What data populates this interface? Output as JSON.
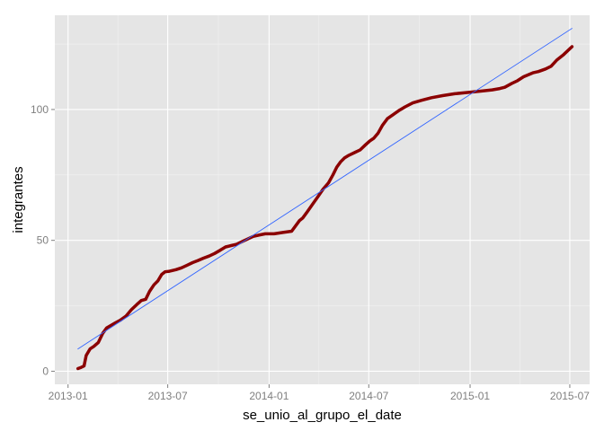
{
  "chart_data": {
    "type": "line",
    "title": "",
    "xlabel": "se_unio_al_grupo_el_date",
    "ylabel": "integrantes",
    "x_is_date": true,
    "xlim": [
      "2012-12-08",
      "2015-08-06"
    ],
    "ylim": [
      -5,
      136
    ],
    "x_ticks": [
      "2013-01",
      "2013-07",
      "2014-01",
      "2014-07",
      "2015-01",
      "2015-07"
    ],
    "y_ticks": [
      0,
      50,
      100
    ],
    "grid": true,
    "legend": "none",
    "colors": {
      "panel": "#e5e5e5",
      "grid_major": "#ffffff",
      "grid_minor": "#f2f2f2",
      "series": "#8b0000",
      "fit": "#3366ff"
    },
    "series": [
      {
        "role": "data",
        "x": [
          "2013-01-19",
          "2013-01-25",
          "2013-01-30",
          "2013-02-03",
          "2013-02-10",
          "2013-02-17",
          "2013-02-25",
          "2013-03-05",
          "2013-03-12",
          "2013-03-20",
          "2013-03-28",
          "2013-04-06",
          "2013-04-16",
          "2013-04-26",
          "2013-05-06",
          "2013-05-14",
          "2013-05-22",
          "2013-05-29",
          "2013-06-06",
          "2013-06-13",
          "2013-06-20",
          "2013-06-26",
          "2013-07-04",
          "2013-07-16",
          "2013-07-26",
          "2013-08-05",
          "2013-08-15",
          "2013-08-25",
          "2013-09-04",
          "2013-09-14",
          "2013-09-24",
          "2013-10-04",
          "2013-10-14",
          "2013-10-24",
          "2013-11-03",
          "2013-11-13",
          "2013-11-23",
          "2013-12-03",
          "2013-12-13",
          "2013-12-25",
          "2014-01-10",
          "2014-01-26",
          "2014-02-11",
          "2014-02-25",
          "2014-03-03",
          "2014-03-10",
          "2014-03-20",
          "2014-03-30",
          "2014-04-09",
          "2014-04-19",
          "2014-04-27",
          "2014-05-04",
          "2014-05-11",
          "2014-05-18",
          "2014-05-26",
          "2014-06-05",
          "2014-06-15",
          "2014-06-25",
          "2014-07-03",
          "2014-07-10",
          "2014-07-18",
          "2014-07-26",
          "2014-08-04",
          "2014-08-14",
          "2014-08-24",
          "2014-09-05",
          "2014-09-19",
          "2014-10-05",
          "2014-10-23",
          "2014-11-12",
          "2014-12-04",
          "2014-12-27",
          "2015-01-20",
          "2015-02-10",
          "2015-02-24",
          "2015-03-05",
          "2015-03-18",
          "2015-03-28",
          "2015-04-08",
          "2015-04-25",
          "2015-05-05",
          "2015-05-18",
          "2015-05-28",
          "2015-06-08",
          "2015-06-20",
          "2015-07-05"
        ],
        "values": [
          1,
          1.5,
          2,
          6,
          8.5,
          9.5,
          11,
          14.5,
          16.5,
          17.5,
          18.5,
          19.5,
          21,
          23.5,
          25.5,
          27,
          27.5,
          30.5,
          33,
          34.5,
          37,
          38,
          38.2,
          38.8,
          39.5,
          40.5,
          41.5,
          42.3,
          43.2,
          44,
          45,
          46.2,
          47.5,
          48,
          48.5,
          49.5,
          50.5,
          51.5,
          52,
          52.5,
          52.5,
          53,
          53.5,
          57.5,
          58.5,
          60.5,
          63.5,
          66.5,
          69.5,
          72,
          75,
          78,
          80,
          81.5,
          82.5,
          83.5,
          84.5,
          86.5,
          88,
          89,
          91,
          94,
          96.5,
          98,
          99.5,
          101,
          102.5,
          103.5,
          104.5,
          105.3,
          106,
          106.5,
          107,
          107.5,
          108,
          108.5,
          110,
          111,
          112.5,
          114,
          114.5,
          115.5,
          116.5,
          119,
          121,
          124
        ]
      },
      {
        "role": "fit",
        "x": [
          "2013-01-19",
          "2015-07-05"
        ],
        "values": [
          8.5,
          131
        ]
      }
    ]
  }
}
